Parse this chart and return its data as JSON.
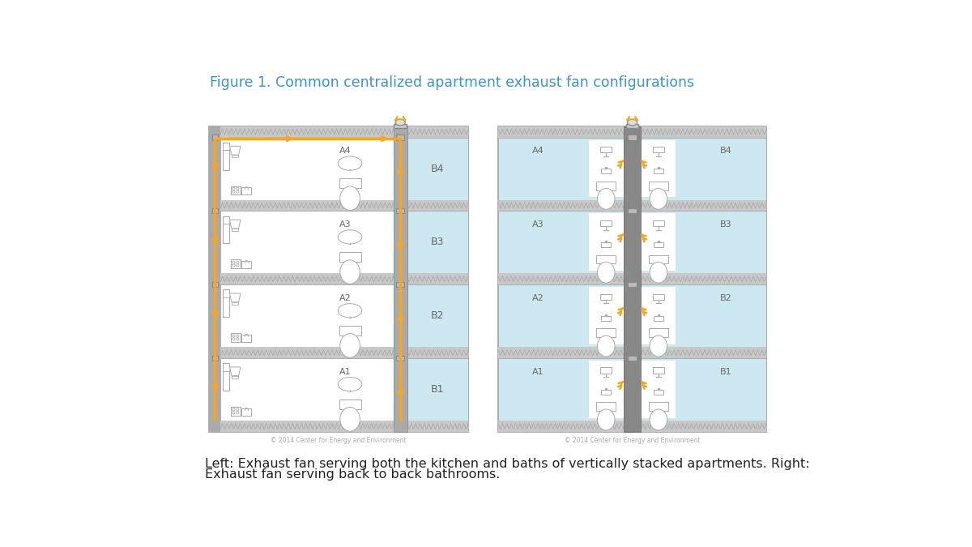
{
  "title": "Figure 1. Common centralized apartment exhaust fan configurations",
  "title_color": "#3d94c7",
  "title_fontsize": 12.5,
  "caption_line1": "Left: Exhaust fan serving both the kitchen and baths of vertically stacked apartments. Right:",
  "caption_line2": "Exhaust fan serving back to back bathrooms.",
  "caption_fontsize": 11.5,
  "bg": "#ffffff",
  "zigzag_color": "#c8c8c8",
  "zigzag_line_color": "#aaaaaa",
  "room_white": "#ffffff",
  "room_blue": "#cde8f0",
  "wall_gray": "#aaaaaa",
  "duct_dark": "#7a7a7a",
  "duct_medium": "#999999",
  "arrow_orange": "#f5a623",
  "label_gray": "#666666",
  "copyright": "© 2014 Center for Energy and Environment",
  "copyright_fontsize": 5.5
}
